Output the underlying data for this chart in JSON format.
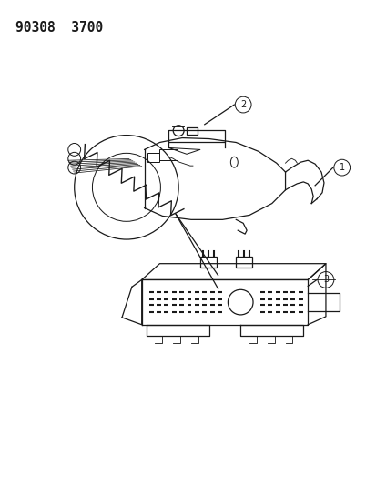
{
  "title_text": "90308  3700",
  "bg_color": "#ffffff",
  "line_color": "#1a1a1a",
  "title_fontsize": 10.5,
  "callout_r": 0.013
}
